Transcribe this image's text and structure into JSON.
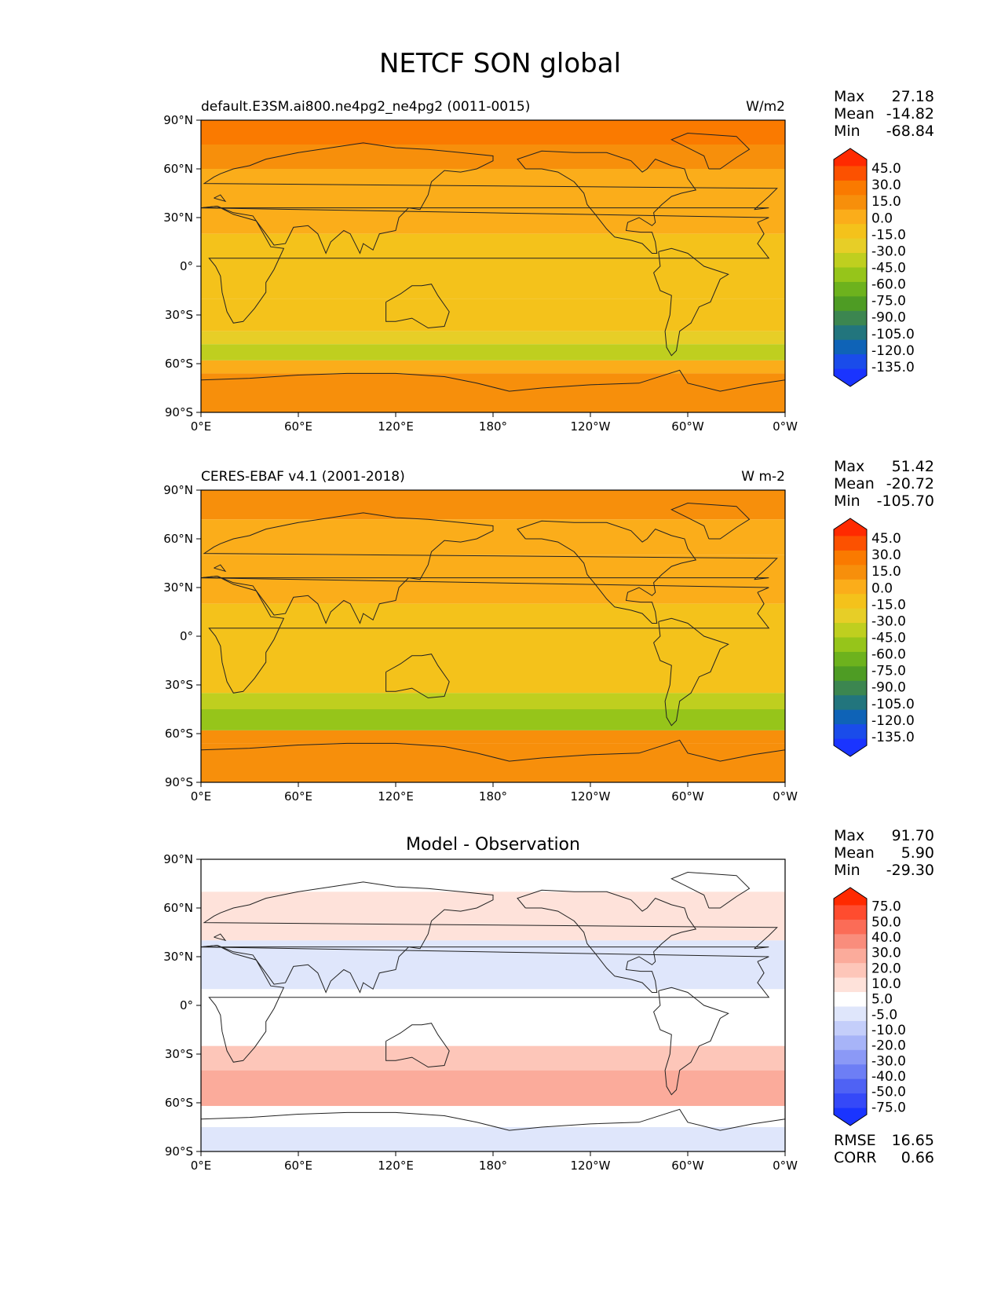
{
  "figure": {
    "title": "NETCF SON global"
  },
  "lat_ticks": [
    "90°N",
    "60°N",
    "30°N",
    "0°",
    "30°S",
    "60°S",
    "90°S"
  ],
  "lon_ticks": [
    "0°E",
    "60°E",
    "120°E",
    "180°",
    "120°W",
    "60°W",
    "0°W"
  ],
  "colors": {
    "mean_levels": [
      "#ff2a00",
      "#fc5100",
      "#fa7a00",
      "#f78f0b",
      "#fbad1a",
      "#f4c21b",
      "#e7ce27",
      "#bfcf1f",
      "#96c51a",
      "#6db21d",
      "#4e9c24",
      "#3c8650",
      "#22757d",
      "#0f63b7",
      "#1a4cea",
      "#1a34ff"
    ],
    "diff_levels": [
      "#ff2a00",
      "#ff4c2f",
      "#fb6c57",
      "#f98d7c",
      "#fbab9b",
      "#fdc6b9",
      "#fee2da",
      "#ffffff",
      "#dfe6fb",
      "#c4cefa",
      "#a7b4f8",
      "#8b99f6",
      "#6d7ef5",
      "#4f62f4",
      "#3549f8",
      "#1a34ff"
    ]
  },
  "chart_data": [
    {
      "type": "heatmap",
      "panel": "test",
      "left_title": "default.E3SM.ai800.ne4pg2_ne4pg2 (0011-0015)",
      "right_title": "W/m2",
      "center_title": "",
      "stats": {
        "labels": [
          "Max",
          "Mean",
          "Min"
        ],
        "values": [
          "27.18",
          "-14.82",
          "-68.84"
        ]
      },
      "colorbar_levels": [
        "45.0",
        "30.0",
        "15.0",
        "0.0",
        "-15.0",
        "-30.0",
        "-45.0",
        "-60.0",
        "-75.0",
        "-90.0",
        "-105.0",
        "-120.0",
        "-135.0"
      ],
      "x_range": [
        0,
        360
      ],
      "y_range": [
        -90,
        90
      ],
      "lat_bands": [
        {
          "lat": [
            90,
            75
          ],
          "level": 2
        },
        {
          "lat": [
            75,
            60
          ],
          "level": 3
        },
        {
          "lat": [
            60,
            20
          ],
          "level": 4
        },
        {
          "lat": [
            20,
            -20
          ],
          "level": 5
        },
        {
          "lat": [
            -20,
            -40
          ],
          "level": 5
        },
        {
          "lat": [
            -40,
            -48
          ],
          "level": 6
        },
        {
          "lat": [
            -48,
            -58
          ],
          "level": 7
        },
        {
          "lat": [
            -58,
            -66
          ],
          "level": 4
        },
        {
          "lat": [
            -66,
            -90
          ],
          "level": 3
        }
      ]
    },
    {
      "type": "heatmap",
      "panel": "reference",
      "left_title": "CERES-EBAF v4.1 (2001-2018)",
      "right_title": "W m-2",
      "center_title": "",
      "stats": {
        "labels": [
          "Max",
          "Mean",
          "Min"
        ],
        "values": [
          "51.42",
          "-20.72",
          "-105.70"
        ]
      },
      "colorbar_levels": [
        "45.0",
        "30.0",
        "15.0",
        "0.0",
        "-15.0",
        "-30.0",
        "-45.0",
        "-60.0",
        "-75.0",
        "-90.0",
        "-105.0",
        "-120.0",
        "-135.0"
      ],
      "x_range": [
        0,
        360
      ],
      "y_range": [
        -90,
        90
      ],
      "lat_bands": [
        {
          "lat": [
            90,
            72
          ],
          "level": 3
        },
        {
          "lat": [
            72,
            50
          ],
          "level": 4
        },
        {
          "lat": [
            50,
            20
          ],
          "level": 4
        },
        {
          "lat": [
            20,
            -15
          ],
          "level": 5
        },
        {
          "lat": [
            -15,
            -35
          ],
          "level": 5
        },
        {
          "lat": [
            -35,
            -45
          ],
          "level": 7
        },
        {
          "lat": [
            -45,
            -58
          ],
          "level": 8
        },
        {
          "lat": [
            -58,
            -66
          ],
          "level": 3
        },
        {
          "lat": [
            -66,
            -90
          ],
          "level": 3
        }
      ]
    },
    {
      "type": "heatmap",
      "panel": "difference",
      "left_title": "",
      "right_title": "",
      "center_title": "Model - Observation",
      "stats": {
        "labels": [
          "Max",
          "Mean",
          "Min"
        ],
        "values": [
          "91.70",
          "5.90",
          "-29.30"
        ]
      },
      "colorbar_levels": [
        "75.0",
        "50.0",
        "40.0",
        "30.0",
        "20.0",
        "10.0",
        "5.0",
        "-5.0",
        "-10.0",
        "-20.0",
        "-30.0",
        "-40.0",
        "-50.0",
        "-75.0"
      ],
      "x_range": [
        0,
        360
      ],
      "y_range": [
        -90,
        90
      ],
      "lat_bands": [
        {
          "lat": [
            90,
            70
          ],
          "level": 7
        },
        {
          "lat": [
            70,
            40
          ],
          "level": 6
        },
        {
          "lat": [
            40,
            10
          ],
          "level": 8
        },
        {
          "lat": [
            10,
            -25
          ],
          "level": 7
        },
        {
          "lat": [
            -25,
            -40
          ],
          "level": 5
        },
        {
          "lat": [
            -40,
            -62
          ],
          "level": 4
        },
        {
          "lat": [
            -62,
            -75
          ],
          "level": 7
        },
        {
          "lat": [
            -75,
            -90
          ],
          "level": 8
        }
      ],
      "rmse": {
        "label": "RMSE",
        "value": "16.65"
      },
      "corr": {
        "label": "CORR",
        "value": "0.66"
      }
    }
  ]
}
